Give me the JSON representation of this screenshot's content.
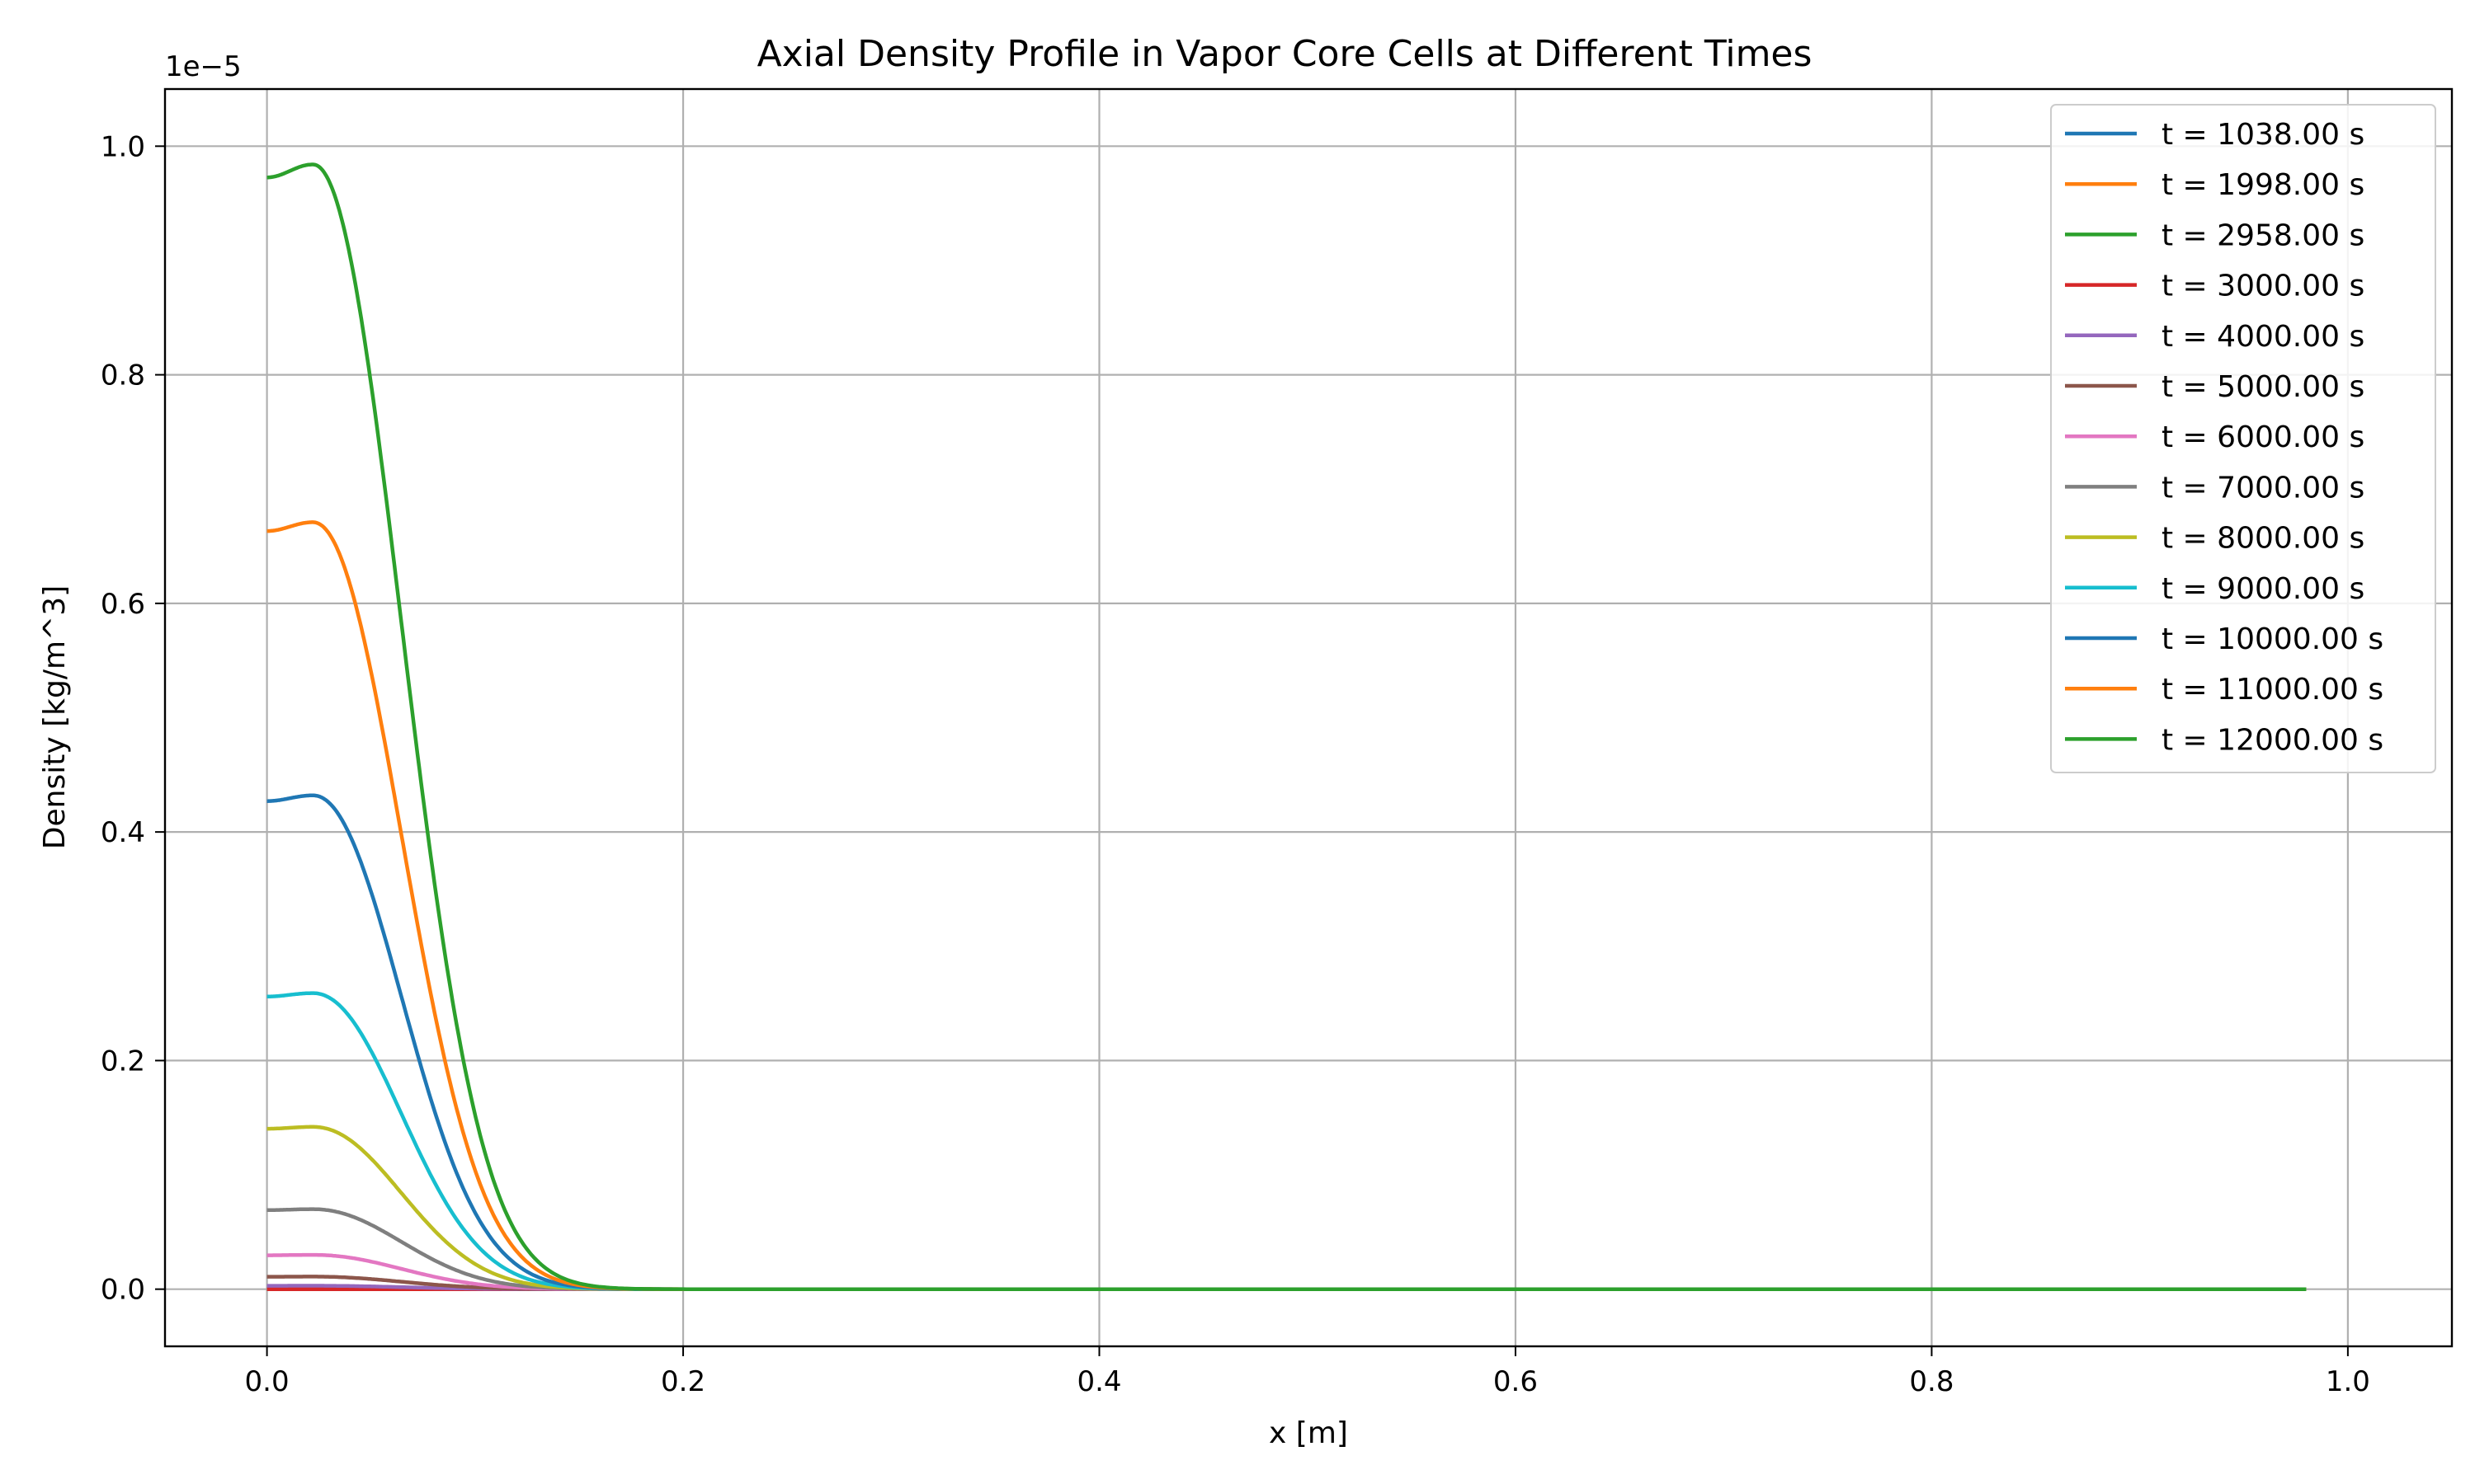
{
  "chart_data": {
    "type": "line",
    "title": "Axial Density Profile in Vapor Core Cells at Different Times",
    "xlabel": "x [m]",
    "ylabel": "Density [kg/m^3]",
    "offset_label": "1e−5",
    "xlim": [
      -0.049,
      1.05
    ],
    "ylim": [
      -0.05,
      1.05
    ],
    "y_scale_multiplier": 1e-05,
    "x_ticks": [
      0.0,
      0.2,
      0.4,
      0.6,
      0.8,
      1.0
    ],
    "x_tick_labels": [
      "0.0",
      "0.2",
      "0.4",
      "0.6",
      "0.8",
      "1.0"
    ],
    "y_ticks": [
      0.0,
      0.2,
      0.4,
      0.6,
      0.8,
      1.0
    ],
    "y_tick_labels": [
      "0.0",
      "0.2",
      "0.4",
      "0.6",
      "0.8",
      "1.0"
    ],
    "grid": true,
    "legend_position": "top-right",
    "x_range": [
      0.0,
      0.98
    ],
    "series": [
      {
        "name": "t = 1038.00 s",
        "color": "#1f77b4",
        "peak": 0.0
      },
      {
        "name": "t = 1998.00 s",
        "color": "#ff7f0e",
        "peak": 0.0
      },
      {
        "name": "t = 2958.00 s",
        "color": "#2ca02c",
        "peak": 0.0
      },
      {
        "name": "t = 3000.00 s",
        "color": "#d62728",
        "peak": 0.0
      },
      {
        "name": "t = 4000.00 s",
        "color": "#9467bd",
        "peak": 0.003
      },
      {
        "name": "t = 5000.00 s",
        "color": "#8c564b",
        "peak": 0.011
      },
      {
        "name": "t = 6000.00 s",
        "color": "#e377c2",
        "peak": 0.03
      },
      {
        "name": "t = 7000.00 s",
        "color": "#7f7f7f",
        "peak": 0.07
      },
      {
        "name": "t = 8000.00 s",
        "color": "#bcbd22",
        "peak": 0.142
      },
      {
        "name": "t = 9000.00 s",
        "color": "#17becf",
        "peak": 0.259
      },
      {
        "name": "t = 10000.00 s",
        "color": "#1f77b4",
        "peak": 0.432
      },
      {
        "name": "t = 11000.00 s",
        "color": "#ff7f0e",
        "peak": 0.671
      },
      {
        "name": "t = 12000.00 s",
        "color": "#2ca02c",
        "peak": 0.984
      }
    ]
  }
}
